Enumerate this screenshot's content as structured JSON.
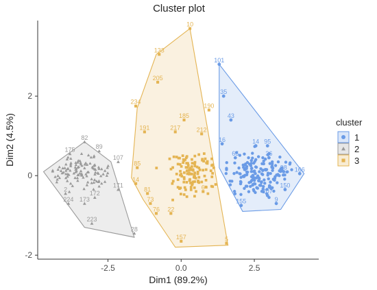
{
  "chart_data": {
    "type": "scatter",
    "title": "Cluster plot",
    "xlabel": "Dim1 (89.2%)",
    "ylabel": "Dim2 (4.5%)",
    "xlim": [
      -4.9,
      4.7
    ],
    "ylim": [
      -2.1,
      3.9
    ],
    "xticks": [
      -2.5,
      0.0,
      2.5
    ],
    "xtick_labels": [
      "-2.5",
      "0.0",
      "2.5"
    ],
    "yticks": [
      -2,
      0,
      2
    ],
    "ytick_labels": [
      "-2",
      "0",
      "2"
    ],
    "grid": false,
    "legend": {
      "title": "cluster",
      "position": "right"
    },
    "series": [
      {
        "name": "1",
        "color": "#6a9be6",
        "marker": "circle",
        "hull": [
          [
            1.3,
            2.8
          ],
          [
            4.2,
            0.05
          ],
          [
            3.4,
            -0.85
          ],
          [
            2.1,
            -0.9
          ],
          [
            1.3,
            0.2
          ]
        ],
        "labeled_points": [
          {
            "label": "101",
            "x": 1.3,
            "y": 2.8
          },
          {
            "label": "35",
            "x": 1.45,
            "y": 2.0
          },
          {
            "label": "43",
            "x": 1.7,
            "y": 1.4
          },
          {
            "label": "16",
            "x": 1.4,
            "y": 0.8
          },
          {
            "label": "14",
            "x": 2.55,
            "y": 0.75
          },
          {
            "label": "95",
            "x": 2.95,
            "y": 0.75
          },
          {
            "label": "65",
            "x": 1.85,
            "y": 0.45
          },
          {
            "label": "36",
            "x": 3.0,
            "y": 0.45
          },
          {
            "label": "150",
            "x": 3.55,
            "y": -0.35
          },
          {
            "label": "207",
            "x": 2.95,
            "y": -0.5
          },
          {
            "label": "155",
            "x": 2.05,
            "y": -0.75
          },
          {
            "label": "9",
            "x": 3.25,
            "y": -0.7
          },
          {
            "label": "166",
            "x": 4.05,
            "y": 0.05
          },
          {
            "label": "98",
            "x": 3.5,
            "y": 0.1
          }
        ]
      },
      {
        "name": "2",
        "color": "#9a9a9a",
        "marker": "triangle",
        "hull": [
          [
            -4.7,
            0.1
          ],
          [
            -3.3,
            0.85
          ],
          [
            -2.4,
            0.35
          ],
          [
            -1.6,
            -1.55
          ],
          [
            -3.3,
            -1.3
          ],
          [
            -4.2,
            -0.4
          ]
        ],
        "labeled_points": [
          {
            "label": "82",
            "x": -3.3,
            "y": 0.85
          },
          {
            "label": "89",
            "x": -2.8,
            "y": 0.62
          },
          {
            "label": "175",
            "x": -3.8,
            "y": 0.55
          },
          {
            "label": "107",
            "x": -2.15,
            "y": 0.35
          },
          {
            "label": "171",
            "x": -2.15,
            "y": -0.35
          },
          {
            "label": "2",
            "x": -3.95,
            "y": -0.45
          },
          {
            "label": "172",
            "x": -2.95,
            "y": -0.55
          },
          {
            "label": "173",
            "x": -3.3,
            "y": -0.7
          },
          {
            "label": "224",
            "x": -3.85,
            "y": -0.7
          },
          {
            "label": "223",
            "x": -3.05,
            "y": -1.2
          },
          {
            "label": "28",
            "x": -1.6,
            "y": -1.45
          }
        ]
      },
      {
        "name": "3",
        "color": "#e4b452",
        "marker": "square",
        "hull": [
          [
            0.3,
            3.7
          ],
          [
            1.6,
            -1.75
          ],
          [
            -0.2,
            -1.8
          ],
          [
            -1.3,
            -0.6
          ],
          [
            -1.7,
            -0.05
          ],
          [
            -1.5,
            1.7
          ],
          [
            -0.85,
            3.05
          ]
        ],
        "labeled_points": [
          {
            "label": "10",
            "x": 0.3,
            "y": 3.7
          },
          {
            "label": "133",
            "x": -0.75,
            "y": 3.05
          },
          {
            "label": "205",
            "x": -0.8,
            "y": 2.35
          },
          {
            "label": "234",
            "x": -1.55,
            "y": 1.75
          },
          {
            "label": "190",
            "x": 0.95,
            "y": 1.65
          },
          {
            "label": "185",
            "x": 0.1,
            "y": 1.4
          },
          {
            "label": "191",
            "x": -1.25,
            "y": 1.1
          },
          {
            "label": "217",
            "x": -0.2,
            "y": 1.1
          },
          {
            "label": "212",
            "x": 0.7,
            "y": 1.05
          },
          {
            "label": "85",
            "x": -1.5,
            "y": 0.2
          },
          {
            "label": "14",
            "x": -1.55,
            "y": -0.2
          },
          {
            "label": "81",
            "x": -1.15,
            "y": -0.45
          },
          {
            "label": "73",
            "x": -1.05,
            "y": -0.7
          },
          {
            "label": "76",
            "x": -0.85,
            "y": -0.95
          },
          {
            "label": "22",
            "x": -0.35,
            "y": -0.95
          },
          {
            "label": "157",
            "x": 0.0,
            "y": -1.65
          },
          {
            "label": "6",
            "x": 0.75,
            "y": -0.4
          },
          {
            "label": "5",
            "x": 1.55,
            "y": -1.7
          }
        ]
      }
    ]
  }
}
